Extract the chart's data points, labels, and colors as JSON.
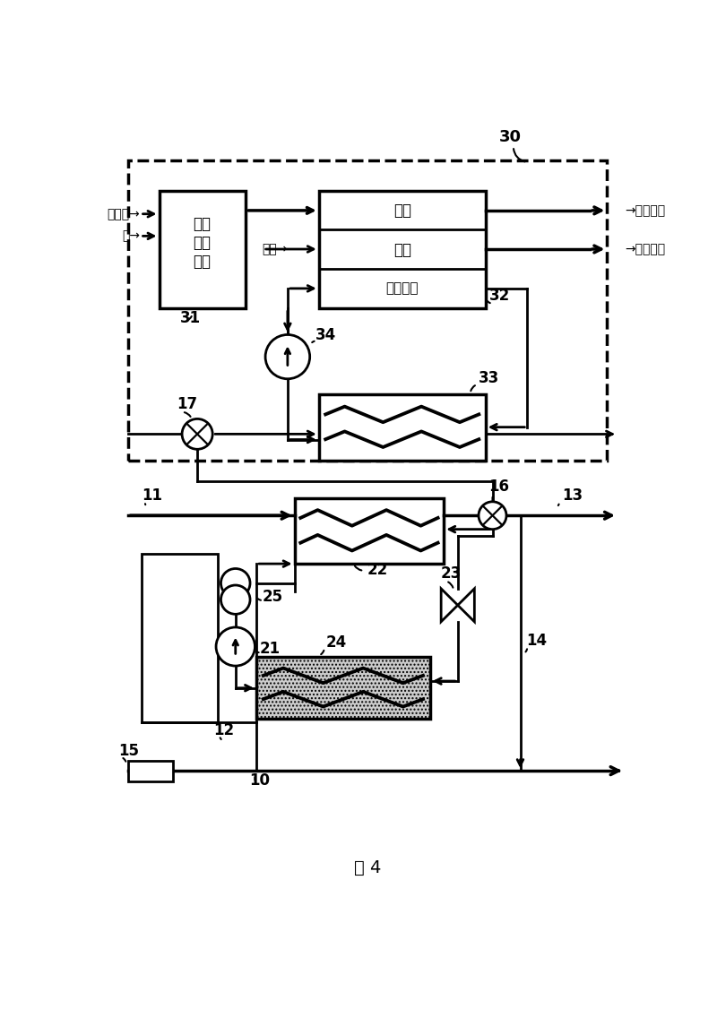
{
  "bg_color": "#ffffff",
  "black": "#000000",
  "fig_label": "图 4",
  "label_30": "30",
  "label_31": "31",
  "label_32": "32",
  "label_33": "33",
  "label_34": "34",
  "label_17": "17",
  "label_11": "11",
  "label_12": "12",
  "label_13": "13",
  "label_14": "14",
  "label_15": "15",
  "label_16": "16",
  "label_10": "10",
  "label_21": "21",
  "label_22": "22",
  "label_23": "23",
  "label_24": "24",
  "label_25": "25",
  "text_tianranqi": "天然气→",
  "text_shui": "水→",
  "text_kongqi": "空气→",
  "text_yangji_weiqi": "→阳极尾气",
  "text_yinji_weiqi": "→阴极尾气",
  "text_yangji": "阳极",
  "text_yinji": "阴极",
  "text_huanre": "换热流路",
  "text_zhongzheng1": "重整",
  "text_zhongzheng2": "制氢",
  "text_zhongzheng3": "装置"
}
